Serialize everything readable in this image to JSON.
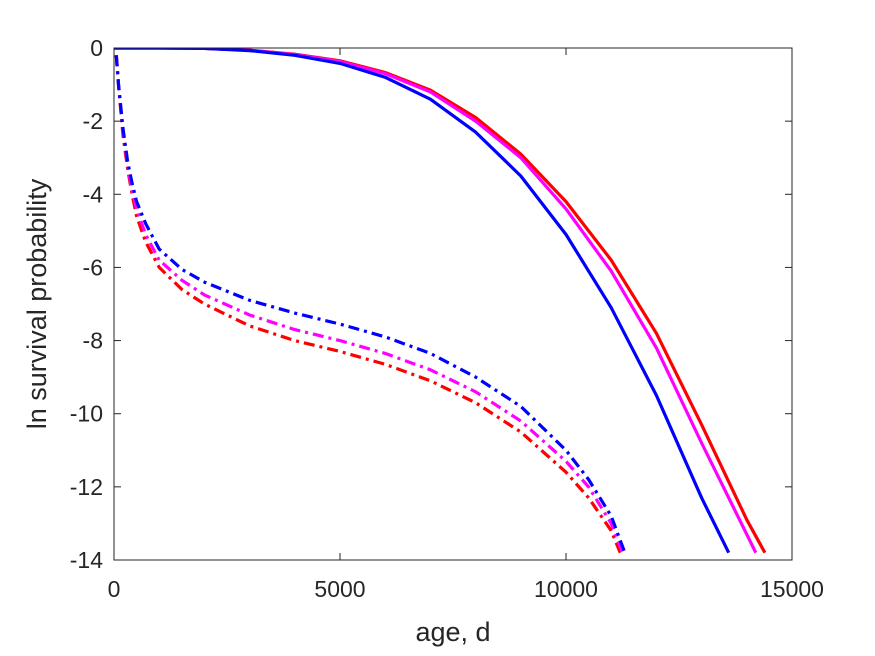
{
  "chart_data": {
    "type": "line",
    "title": "",
    "xlabel": "age, d",
    "ylabel": "ln survival probability",
    "xlim": [
      0,
      15000
    ],
    "ylim": [
      -14,
      0
    ],
    "xticks": [
      0,
      5000,
      10000,
      15000
    ],
    "yticks": [
      0,
      -2,
      -4,
      -6,
      -8,
      -10,
      -12,
      -14
    ],
    "xtick_labels": [
      "0",
      "5000",
      "10000",
      "15000"
    ],
    "ytick_labels": [
      "0",
      "-2",
      "-4",
      "-6",
      "-8",
      "-10",
      "-12",
      "-14"
    ],
    "grid": false,
    "legend": "none",
    "series": [
      {
        "color": "#ff0000",
        "style": "solid",
        "x": [
          0,
          1000,
          2000,
          3000,
          4000,
          5000,
          6000,
          7000,
          8000,
          9000,
          10000,
          11000,
          12000,
          13000,
          14000,
          14400
        ],
        "y": [
          0,
          0,
          -0.01,
          -0.06,
          -0.17,
          -0.35,
          -0.67,
          -1.15,
          -1.9,
          -2.9,
          -4.2,
          -5.8,
          -7.8,
          -10.3,
          -12.9,
          -13.8
        ]
      },
      {
        "color": "#ff00ff",
        "style": "solid",
        "x": [
          0,
          1000,
          2000,
          3000,
          4000,
          5000,
          6000,
          7000,
          8000,
          9000,
          10000,
          11000,
          12000,
          13000,
          14000,
          14200
        ],
        "y": [
          0,
          0,
          -0.01,
          -0.06,
          -0.18,
          -0.37,
          -0.7,
          -1.2,
          -2.0,
          -3.0,
          -4.4,
          -6.1,
          -8.2,
          -10.8,
          -13.3,
          -13.8
        ]
      },
      {
        "color": "#0000ff",
        "style": "solid",
        "x": [
          0,
          1000,
          2000,
          3000,
          4000,
          5000,
          6000,
          7000,
          8000,
          9000,
          10000,
          11000,
          12000,
          13000,
          13600
        ],
        "y": [
          0,
          0,
          -0.01,
          -0.07,
          -0.2,
          -0.42,
          -0.8,
          -1.4,
          -2.3,
          -3.5,
          -5.1,
          -7.1,
          -9.5,
          -12.3,
          -13.8
        ]
      },
      {
        "color": "#ff0000",
        "style": "dashdot",
        "x": [
          50,
          100,
          200,
          300,
          400,
          500,
          700,
          1000,
          1500,
          2000,
          3000,
          4000,
          5000,
          6000,
          7000,
          8000,
          9000,
          10000,
          10500,
          11000,
          11200
        ],
        "y": [
          -0.2,
          -1.0,
          -2.4,
          -3.3,
          -4.0,
          -4.6,
          -5.3,
          -6.0,
          -6.6,
          -7.0,
          -7.6,
          -8.0,
          -8.3,
          -8.65,
          -9.1,
          -9.7,
          -10.5,
          -11.6,
          -12.3,
          -13.2,
          -13.8
        ]
      },
      {
        "color": "#ff00ff",
        "style": "dashdot",
        "x": [
          50,
          100,
          200,
          300,
          400,
          500,
          700,
          1000,
          1500,
          2000,
          3000,
          4000,
          5000,
          6000,
          7000,
          8000,
          9000,
          10000,
          10500,
          11000,
          11250
        ],
        "y": [
          -0.2,
          -1.0,
          -2.3,
          -3.2,
          -3.9,
          -4.4,
          -5.1,
          -5.8,
          -6.35,
          -6.75,
          -7.3,
          -7.7,
          -8.0,
          -8.35,
          -8.8,
          -9.4,
          -10.2,
          -11.3,
          -12.0,
          -13.0,
          -13.8
        ]
      },
      {
        "color": "#0000ff",
        "style": "dashdot",
        "x": [
          50,
          100,
          200,
          300,
          400,
          500,
          700,
          1000,
          1500,
          2000,
          3000,
          4000,
          5000,
          6000,
          7000,
          8000,
          9000,
          10000,
          10500,
          11000,
          11300
        ],
        "y": [
          -0.2,
          -1.0,
          -2.2,
          -3.1,
          -3.7,
          -4.2,
          -4.8,
          -5.5,
          -6.05,
          -6.4,
          -6.9,
          -7.25,
          -7.55,
          -7.9,
          -8.35,
          -9.0,
          -9.8,
          -11.0,
          -11.8,
          -12.8,
          -13.8
        ]
      }
    ]
  }
}
